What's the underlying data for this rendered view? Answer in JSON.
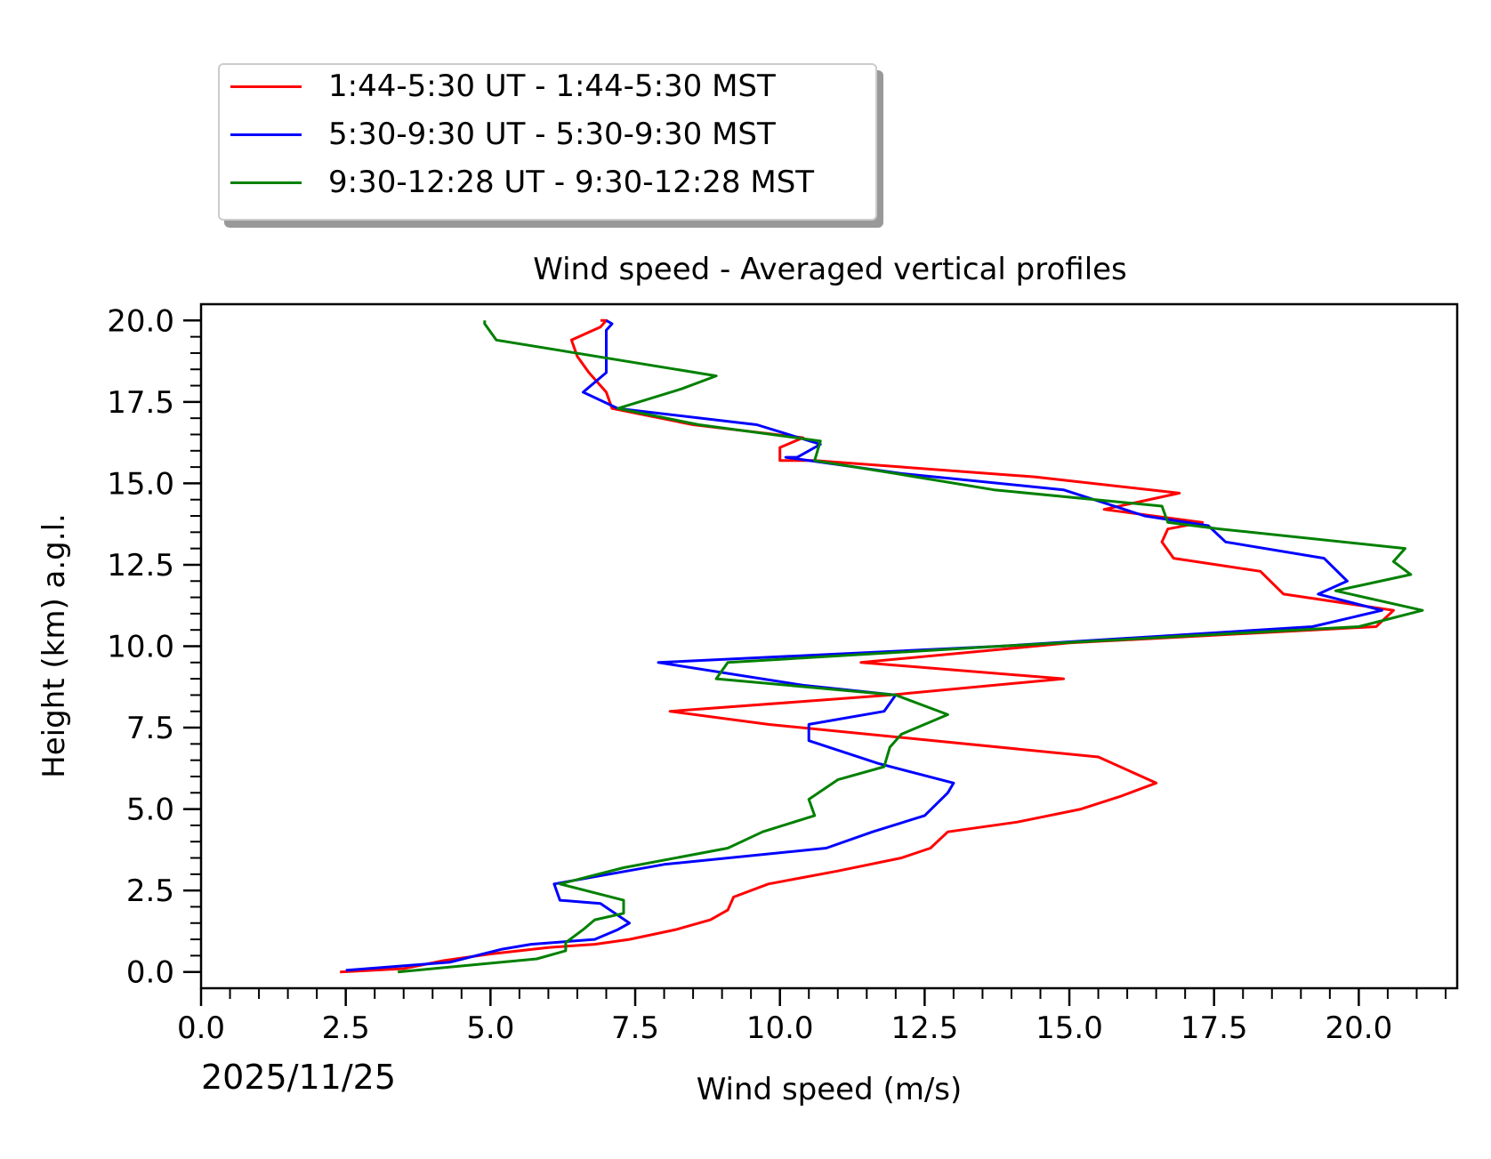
{
  "chart_data": {
    "type": "line",
    "title": "Wind speed - Averaged vertical profiles",
    "xlabel": "Wind speed (m/s)",
    "ylabel": "Height (km) a.g.l.",
    "date_label": "2025/11/25",
    "xlim": [
      0,
      21.7
    ],
    "ylim": [
      -0.5,
      20.5
    ],
    "x_ticks": [
      0.0,
      2.5,
      5.0,
      7.5,
      10.0,
      12.5,
      15.0,
      17.5,
      20.0
    ],
    "x_tick_labels": [
      "0.0",
      "2.5",
      "5.0",
      "7.5",
      "10.0",
      "12.5",
      "15.0",
      "17.5",
      "20.0"
    ],
    "y_ticks": [
      0.0,
      2.5,
      5.0,
      7.5,
      10.0,
      12.5,
      15.0,
      17.5,
      20.0
    ],
    "y_tick_labels": [
      "0.0",
      "2.5",
      "5.0",
      "7.5",
      "10.0",
      "12.5",
      "15.0",
      "17.5",
      "20.0"
    ],
    "legend_position": "top-left, above plot",
    "series": [
      {
        "name": "1:44-5:30 UT - 1:44-5:30 MST",
        "color": "#ff0000",
        "points": [
          [
            2.4,
            0.0
          ],
          [
            3.5,
            0.1
          ],
          [
            4.2,
            0.35
          ],
          [
            5.0,
            0.55
          ],
          [
            6.0,
            0.75
          ],
          [
            6.8,
            0.85
          ],
          [
            7.4,
            1.0
          ],
          [
            8.2,
            1.3
          ],
          [
            8.8,
            1.6
          ],
          [
            9.1,
            1.9
          ],
          [
            9.2,
            2.3
          ],
          [
            9.8,
            2.7
          ],
          [
            11.0,
            3.1
          ],
          [
            12.1,
            3.5
          ],
          [
            12.6,
            3.8
          ],
          [
            12.9,
            4.3
          ],
          [
            14.1,
            4.6
          ],
          [
            15.2,
            5.0
          ],
          [
            15.9,
            5.4
          ],
          [
            16.5,
            5.8
          ],
          [
            15.5,
            6.6
          ],
          [
            9.8,
            7.6
          ],
          [
            8.1,
            8.0
          ],
          [
            11.9,
            8.5
          ],
          [
            14.9,
            9.0
          ],
          [
            11.4,
            9.5
          ],
          [
            15.0,
            10.1
          ],
          [
            20.3,
            10.6
          ],
          [
            20.6,
            11.1
          ],
          [
            18.7,
            11.6
          ],
          [
            18.3,
            12.3
          ],
          [
            16.8,
            12.7
          ],
          [
            16.6,
            13.2
          ],
          [
            16.7,
            13.6
          ],
          [
            17.3,
            13.8
          ],
          [
            15.6,
            14.2
          ],
          [
            16.9,
            14.7
          ],
          [
            14.4,
            15.2
          ],
          [
            10.6,
            15.7
          ],
          [
            10.0,
            15.7
          ],
          [
            10.0,
            16.1
          ],
          [
            10.4,
            16.4
          ],
          [
            8.5,
            16.8
          ],
          [
            7.1,
            17.3
          ],
          [
            7.0,
            17.8
          ],
          [
            6.7,
            18.4
          ],
          [
            6.5,
            18.9
          ],
          [
            6.4,
            19.4
          ],
          [
            6.9,
            19.8
          ],
          [
            7.0,
            20.0
          ],
          [
            6.9,
            20.0
          ]
        ]
      },
      {
        "name": "5:30-9:30 UT - 5:30-9:30 MST",
        "color": "#0000ff",
        "points": [
          [
            2.5,
            0.05
          ],
          [
            4.3,
            0.3
          ],
          [
            5.2,
            0.7
          ],
          [
            5.7,
            0.85
          ],
          [
            6.8,
            1.0
          ],
          [
            7.2,
            1.3
          ],
          [
            7.4,
            1.5
          ],
          [
            6.9,
            2.1
          ],
          [
            6.2,
            2.2
          ],
          [
            6.1,
            2.7
          ],
          [
            8.0,
            3.3
          ],
          [
            10.8,
            3.8
          ],
          [
            11.6,
            4.3
          ],
          [
            12.5,
            4.8
          ],
          [
            12.9,
            5.5
          ],
          [
            13.0,
            5.8
          ],
          [
            11.7,
            6.4
          ],
          [
            10.5,
            7.1
          ],
          [
            10.5,
            7.6
          ],
          [
            11.8,
            8.0
          ],
          [
            12.0,
            8.5
          ],
          [
            10.4,
            8.8
          ],
          [
            7.9,
            9.5
          ],
          [
            13.8,
            10.0
          ],
          [
            19.2,
            10.6
          ],
          [
            20.4,
            11.1
          ],
          [
            19.3,
            11.6
          ],
          [
            19.8,
            12.0
          ],
          [
            19.4,
            12.7
          ],
          [
            17.7,
            13.2
          ],
          [
            17.4,
            13.7
          ],
          [
            16.3,
            14.0
          ],
          [
            14.9,
            14.8
          ],
          [
            12.1,
            15.3
          ],
          [
            10.1,
            15.8
          ],
          [
            10.3,
            15.8
          ],
          [
            10.7,
            16.2
          ],
          [
            9.6,
            16.8
          ],
          [
            7.2,
            17.3
          ],
          [
            6.6,
            17.8
          ],
          [
            7.0,
            18.4
          ],
          [
            7.0,
            19.1
          ],
          [
            7.0,
            19.7
          ],
          [
            7.1,
            19.9
          ],
          [
            7.0,
            20.0
          ]
        ]
      },
      {
        "name": "9:30-12:28 UT - 9:30-12:28 MST",
        "color": "#008000",
        "points": [
          [
            3.4,
            0.0
          ],
          [
            4.9,
            0.25
          ],
          [
            5.8,
            0.4
          ],
          [
            6.3,
            0.65
          ],
          [
            6.3,
            0.9
          ],
          [
            6.6,
            1.3
          ],
          [
            6.8,
            1.6
          ],
          [
            7.3,
            1.8
          ],
          [
            7.3,
            2.2
          ],
          [
            6.2,
            2.7
          ],
          [
            7.3,
            3.2
          ],
          [
            9.1,
            3.8
          ],
          [
            9.7,
            4.3
          ],
          [
            10.6,
            4.8
          ],
          [
            10.5,
            5.3
          ],
          [
            11.0,
            5.9
          ],
          [
            11.8,
            6.3
          ],
          [
            11.9,
            6.9
          ],
          [
            12.1,
            7.3
          ],
          [
            12.9,
            7.9
          ],
          [
            12.0,
            8.5
          ],
          [
            8.9,
            9.0
          ],
          [
            9.1,
            9.5
          ],
          [
            13.8,
            10.0
          ],
          [
            20.0,
            10.6
          ],
          [
            21.1,
            11.1
          ],
          [
            19.6,
            11.7
          ],
          [
            20.9,
            12.2
          ],
          [
            20.6,
            12.6
          ],
          [
            20.8,
            13.0
          ],
          [
            17.6,
            13.6
          ],
          [
            16.7,
            13.8
          ],
          [
            16.6,
            14.3
          ],
          [
            13.7,
            14.8
          ],
          [
            12.0,
            15.3
          ],
          [
            10.6,
            15.7
          ],
          [
            10.7,
            16.3
          ],
          [
            8.6,
            16.8
          ],
          [
            7.2,
            17.3
          ],
          [
            8.3,
            17.9
          ],
          [
            8.9,
            18.3
          ],
          [
            5.1,
            19.4
          ],
          [
            4.9,
            19.9
          ],
          [
            4.9,
            20.0
          ]
        ]
      }
    ]
  }
}
